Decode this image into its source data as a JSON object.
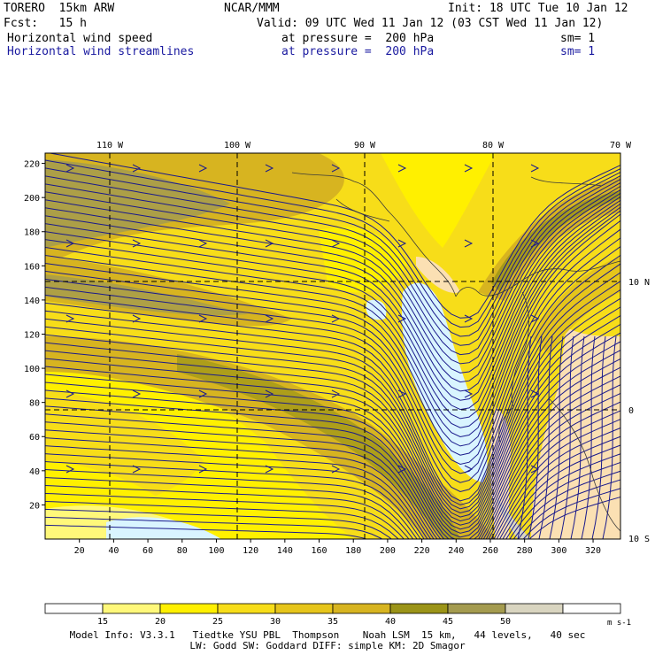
{
  "header": {
    "model": "TORERO  15km ARW",
    "org": "NCAR/MMM",
    "init": "Init: 18 UTC Tue 10 Jan 12",
    "fcst": "Fcst:   15 h",
    "valid": "Valid: 09 UTC Wed 11 Jan 12 (03 CST Wed 11 Jan 12)",
    "fields": [
      {
        "name": "Horizontal wind speed",
        "level": "at pressure =  200 hPa",
        "sm": "sm= 1"
      },
      {
        "name": "Horizontal wind streamlines",
        "level": "at pressure =  200 hPa",
        "sm": "sm= 1"
      }
    ]
  },
  "map": {
    "lon_labels": [
      "110 W",
      "100 W",
      "90 W",
      "80 W",
      "70 W"
    ],
    "lat_labels": [
      "10 N",
      "0",
      "10 S"
    ],
    "y_ticks": [
      "220",
      "200",
      "180",
      "160",
      "140",
      "120",
      "100",
      "80",
      "60",
      "40",
      "20"
    ],
    "x_ticks": [
      "20",
      "40",
      "60",
      "80",
      "100",
      "120",
      "140",
      "160",
      "180",
      "200",
      "220",
      "240",
      "260",
      "280",
      "300",
      "320"
    ]
  },
  "colorbar": {
    "labels": [
      "15",
      "20",
      "25",
      "30",
      "35",
      "40",
      "45",
      "50"
    ],
    "units": "m s-1",
    "colors": [
      "#ffffff",
      "#fff87a",
      "#fff000",
      "#f7dd19",
      "#e6c51b",
      "#d7b420",
      "#9b9418",
      "#a49b4f",
      "#d9d5c0",
      "#ffffff"
    ]
  },
  "footer": {
    "line1": "Model Info: V3.3.1   Tiedtke YSU PBL  Thompson    Noah LSM  15 km,   44 levels,   40 sec",
    "line2": "LW: Godd SW: Goddard DIFF: simple KM: 2D Smagor"
  }
}
